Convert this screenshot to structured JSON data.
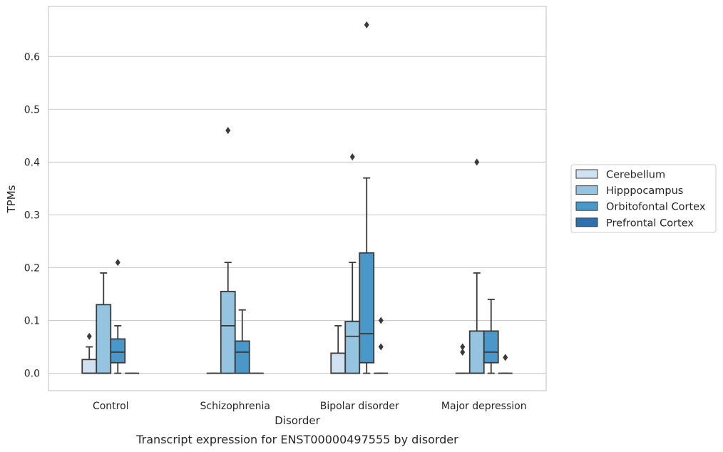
{
  "chart_data": {
    "type": "box",
    "xlabel": "Disorder",
    "ylabel": "TPMs",
    "caption": "Transcript expression for ENST00000497555 by disorder",
    "ylim": [
      -0.033,
      0.695
    ],
    "yticks": [
      0.0,
      0.1,
      0.2,
      0.3,
      0.4,
      0.5,
      0.6
    ],
    "ytick_labels": [
      "0.0",
      "0.1",
      "0.2",
      "0.3",
      "0.4",
      "0.5",
      "0.6"
    ],
    "grid": true,
    "legend_position": "right",
    "categories": [
      "Control",
      "Schizophrenia",
      "Bipolar disorder",
      "Major depression"
    ],
    "series": [
      {
        "name": "Cerebellum",
        "color": "#d0e1f2",
        "boxes": [
          {
            "min": 0.0,
            "q1": 0.0,
            "median": 0.0,
            "q3": 0.026,
            "max": 0.05,
            "outliers": [
              0.07
            ]
          },
          {
            "min": 0.0,
            "q1": 0.0,
            "median": 0.0,
            "q3": 0.0,
            "max": 0.0,
            "outliers": []
          },
          {
            "min": 0.0,
            "q1": 0.0,
            "median": 0.0,
            "q3": 0.038,
            "max": 0.09,
            "outliers": []
          },
          {
            "min": 0.0,
            "q1": 0.0,
            "median": 0.0,
            "q3": 0.0,
            "max": 0.0,
            "outliers": [
              0.04,
              0.05
            ]
          }
        ]
      },
      {
        "name": "Hipppocampus",
        "color": "#94c4df",
        "boxes": [
          {
            "min": 0.0,
            "q1": 0.0,
            "median": 0.0,
            "q3": 0.13,
            "max": 0.19,
            "outliers": []
          },
          {
            "min": 0.0,
            "q1": 0.0,
            "median": 0.09,
            "q3": 0.155,
            "max": 0.21,
            "outliers": [
              0.46
            ]
          },
          {
            "min": 0.0,
            "q1": 0.0,
            "median": 0.07,
            "q3": 0.098,
            "max": 0.21,
            "outliers": [
              0.41
            ]
          },
          {
            "min": 0.0,
            "q1": 0.0,
            "median": 0.0,
            "q3": 0.08,
            "max": 0.19,
            "outliers": [
              0.4
            ]
          }
        ]
      },
      {
        "name": "Orbitofontal Cortex",
        "color": "#4a98c9",
        "boxes": [
          {
            "min": 0.0,
            "q1": 0.02,
            "median": 0.04,
            "q3": 0.065,
            "max": 0.09,
            "outliers": [
              0.21
            ]
          },
          {
            "min": 0.0,
            "q1": 0.0,
            "median": 0.04,
            "q3": 0.061,
            "max": 0.12,
            "outliers": []
          },
          {
            "min": 0.0,
            "q1": 0.02,
            "median": 0.075,
            "q3": 0.228,
            "max": 0.37,
            "outliers": [
              0.66
            ]
          },
          {
            "min": 0.0,
            "q1": 0.02,
            "median": 0.04,
            "q3": 0.08,
            "max": 0.14,
            "outliers": []
          }
        ]
      },
      {
        "name": "Prefrontal Cortex",
        "color": "#2e6fae",
        "boxes": [
          {
            "min": 0.0,
            "q1": 0.0,
            "median": 0.0,
            "q3": 0.0,
            "max": 0.0,
            "outliers": []
          },
          {
            "min": 0.0,
            "q1": 0.0,
            "median": 0.0,
            "q3": 0.0,
            "max": 0.0,
            "outliers": []
          },
          {
            "min": 0.0,
            "q1": 0.0,
            "median": 0.0,
            "q3": 0.0,
            "max": 0.0,
            "outliers": [
              0.05,
              0.1
            ]
          },
          {
            "min": 0.0,
            "q1": 0.0,
            "median": 0.0,
            "q3": 0.0,
            "max": 0.0,
            "outliers": [
              0.03
            ]
          }
        ]
      }
    ]
  }
}
